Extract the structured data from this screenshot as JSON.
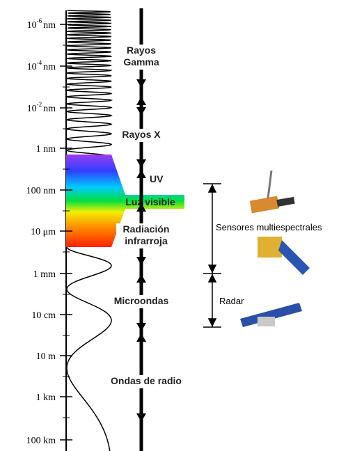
{
  "scale": [
    {
      "text": "10",
      "sup": "-6",
      "unit": "nm"
    },
    {
      "text": "10",
      "sup": "-4",
      "unit": "nm"
    },
    {
      "text": "10",
      "sup": "-2",
      "unit": "nm"
    },
    {
      "text": "1 nm"
    },
    {
      "text": "100 nm"
    },
    {
      "text": "10 μm"
    },
    {
      "text": "1 mm"
    },
    {
      "text": "10 cm"
    },
    {
      "text": "10 m"
    },
    {
      "text": "1 km"
    },
    {
      "text": "100 km"
    }
  ],
  "bands": [
    {
      "lines": [
        "Rayos",
        "Gamma"
      ]
    },
    {
      "lines": [
        "Rayos X"
      ]
    },
    {
      "lines": [
        "UV"
      ]
    },
    {
      "lines": [
        "Luz visible"
      ]
    },
    {
      "lines": [
        "Radiación",
        "infrarroja"
      ]
    },
    {
      "lines": [
        "Microondas"
      ]
    },
    {
      "lines": [
        "Ondas de radio"
      ]
    }
  ],
  "sensors": {
    "multispectral": "Sensores multiespectrales",
    "radar": "Radar"
  }
}
